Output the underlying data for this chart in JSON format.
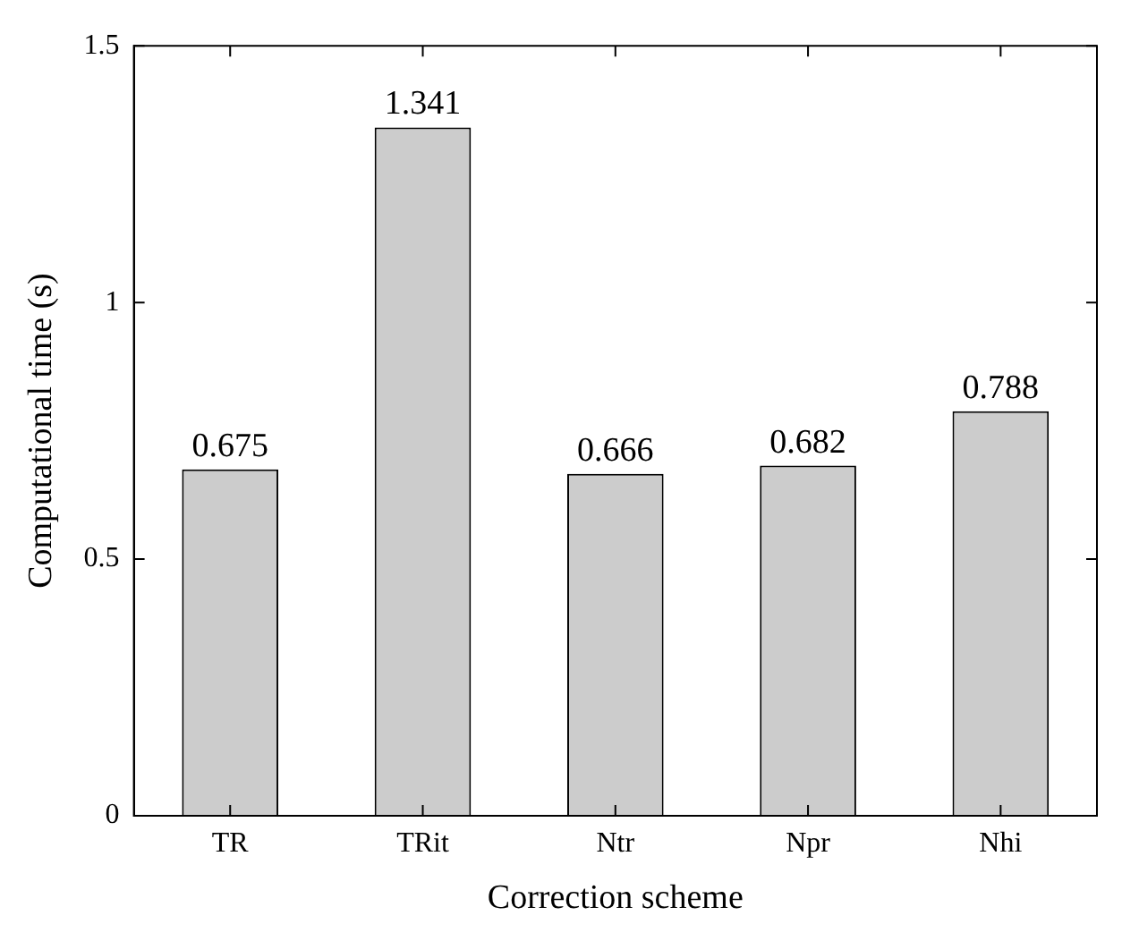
{
  "chart_data": {
    "type": "bar",
    "xlabel": "Correction scheme",
    "ylabel": "Computational time (s)",
    "categories": [
      "TR",
      "TRit",
      "Ntr",
      "Npr",
      "Nhi"
    ],
    "values": [
      0.675,
      1.341,
      0.666,
      0.682,
      0.788
    ],
    "color": "#cccccc",
    "ylim": [
      0,
      1.5
    ],
    "yticks": [
      0,
      0.5,
      1,
      1.5
    ],
    "grid": false,
    "legend": false,
    "data_labels": true
  }
}
